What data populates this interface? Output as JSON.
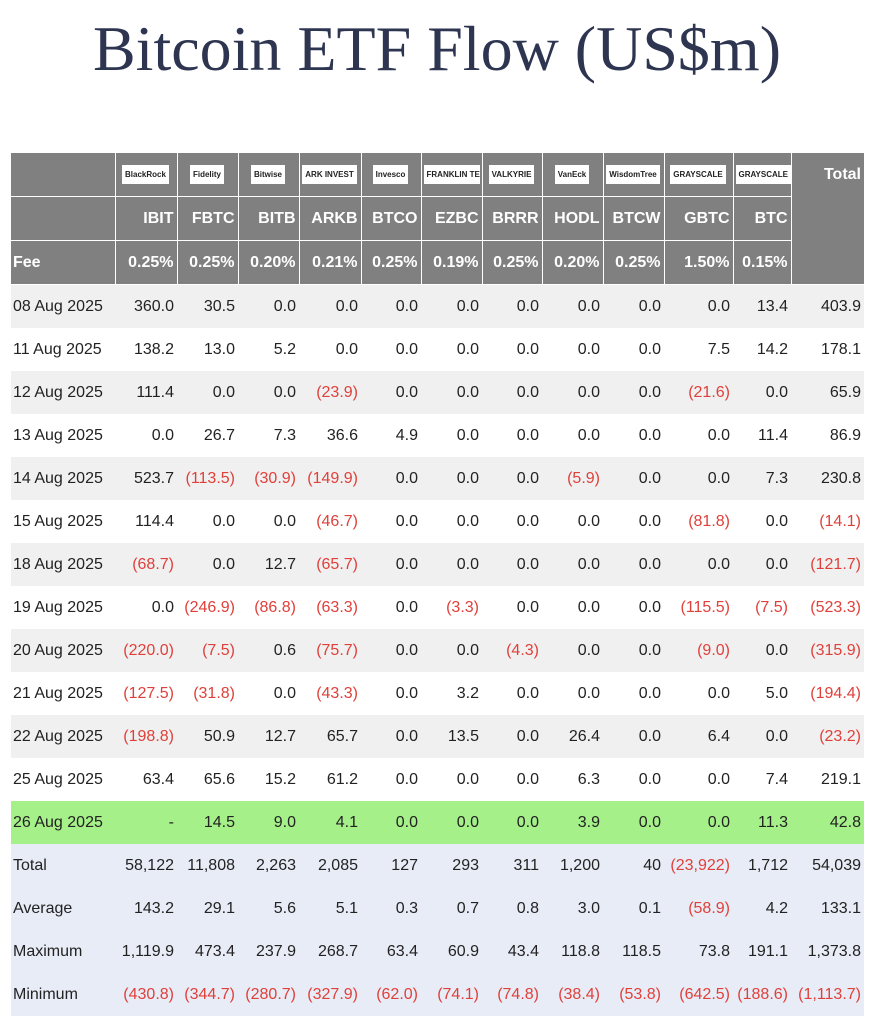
{
  "title": "Bitcoin ETF Flow (US$m)",
  "table": {
    "logos": [
      "BlackRock",
      "Fidelity",
      "Bitwise",
      "ARK INVEST",
      "Invesco",
      "FRANKLIN TEMPLETON",
      "VALKYRIE",
      "VanEck",
      "WisdomTree",
      "GRAYSCALE",
      "GRAYSCALE"
    ],
    "total_header": "Total",
    "tickers": [
      "IBIT",
      "FBTC",
      "BITB",
      "ARKB",
      "BTCO",
      "EZBC",
      "BRRR",
      "HODL",
      "BTCW",
      "GBTC",
      "BTC"
    ],
    "fee_label": "Fee",
    "fees": [
      "0.25%",
      "0.25%",
      "0.20%",
      "0.21%",
      "0.25%",
      "0.19%",
      "0.25%",
      "0.20%",
      "0.25%",
      "1.50%",
      "0.15%"
    ],
    "rows": [
      [
        "08 Aug 2025",
        "360.0",
        "30.5",
        "0.0",
        "0.0",
        "0.0",
        "0.0",
        "0.0",
        "0.0",
        "0.0",
        "0.0",
        "13.4",
        "403.9"
      ],
      [
        "11 Aug 2025",
        "138.2",
        "13.0",
        "5.2",
        "0.0",
        "0.0",
        "0.0",
        "0.0",
        "0.0",
        "0.0",
        "7.5",
        "14.2",
        "178.1"
      ],
      [
        "12 Aug 2025",
        "111.4",
        "0.0",
        "0.0",
        "(23.9)",
        "0.0",
        "0.0",
        "0.0",
        "0.0",
        "0.0",
        "(21.6)",
        "0.0",
        "65.9"
      ],
      [
        "13 Aug 2025",
        "0.0",
        "26.7",
        "7.3",
        "36.6",
        "4.9",
        "0.0",
        "0.0",
        "0.0",
        "0.0",
        "0.0",
        "11.4",
        "86.9"
      ],
      [
        "14 Aug 2025",
        "523.7",
        "(113.5)",
        "(30.9)",
        "(149.9)",
        "0.0",
        "0.0",
        "0.0",
        "(5.9)",
        "0.0",
        "0.0",
        "7.3",
        "230.8"
      ],
      [
        "15 Aug 2025",
        "114.4",
        "0.0",
        "0.0",
        "(46.7)",
        "0.0",
        "0.0",
        "0.0",
        "0.0",
        "0.0",
        "(81.8)",
        "0.0",
        "(14.1)"
      ],
      [
        "18 Aug 2025",
        "(68.7)",
        "0.0",
        "12.7",
        "(65.7)",
        "0.0",
        "0.0",
        "0.0",
        "0.0",
        "0.0",
        "0.0",
        "0.0",
        "(121.7)"
      ],
      [
        "19 Aug 2025",
        "0.0",
        "(246.9)",
        "(86.8)",
        "(63.3)",
        "0.0",
        "(3.3)",
        "0.0",
        "0.0",
        "0.0",
        "(115.5)",
        "(7.5)",
        "(523.3)"
      ],
      [
        "20 Aug 2025",
        "(220.0)",
        "(7.5)",
        "0.6",
        "(75.7)",
        "0.0",
        "0.0",
        "(4.3)",
        "0.0",
        "0.0",
        "(9.0)",
        "0.0",
        "(315.9)"
      ],
      [
        "21 Aug 2025",
        "(127.5)",
        "(31.8)",
        "0.0",
        "(43.3)",
        "0.0",
        "3.2",
        "0.0",
        "0.0",
        "0.0",
        "0.0",
        "5.0",
        "(194.4)"
      ],
      [
        "22 Aug 2025",
        "(198.8)",
        "50.9",
        "12.7",
        "65.7",
        "0.0",
        "13.5",
        "0.0",
        "26.4",
        "0.0",
        "6.4",
        "0.0",
        "(23.2)"
      ],
      [
        "25 Aug 2025",
        "63.4",
        "65.6",
        "15.2",
        "61.2",
        "0.0",
        "0.0",
        "0.0",
        "6.3",
        "0.0",
        "0.0",
        "7.4",
        "219.1"
      ],
      [
        "26 Aug 2025",
        "-",
        "14.5",
        "9.0",
        "4.1",
        "0.0",
        "0.0",
        "0.0",
        "3.9",
        "0.0",
        "0.0",
        "11.3",
        "42.8"
      ]
    ],
    "summary": [
      [
        "Total",
        "58,122",
        "11,808",
        "2,263",
        "2,085",
        "127",
        "293",
        "311",
        "1,200",
        "40",
        "(23,922)",
        "1,712",
        "54,039"
      ],
      [
        "Average",
        "143.2",
        "29.1",
        "5.6",
        "5.1",
        "0.3",
        "0.7",
        "0.8",
        "3.0",
        "0.1",
        "(58.9)",
        "4.2",
        "133.1"
      ],
      [
        "Maximum",
        "1,119.9",
        "473.4",
        "237.9",
        "268.7",
        "63.4",
        "60.9",
        "43.4",
        "118.8",
        "118.5",
        "73.8",
        "191.1",
        "1,373.8"
      ],
      [
        "Minimum",
        "(430.8)",
        "(344.7)",
        "(280.7)",
        "(327.9)",
        "(62.0)",
        "(74.1)",
        "(74.8)",
        "(38.4)",
        "(53.8)",
        "(642.5)",
        "(188.6)",
        "(1,113.7)"
      ]
    ]
  }
}
